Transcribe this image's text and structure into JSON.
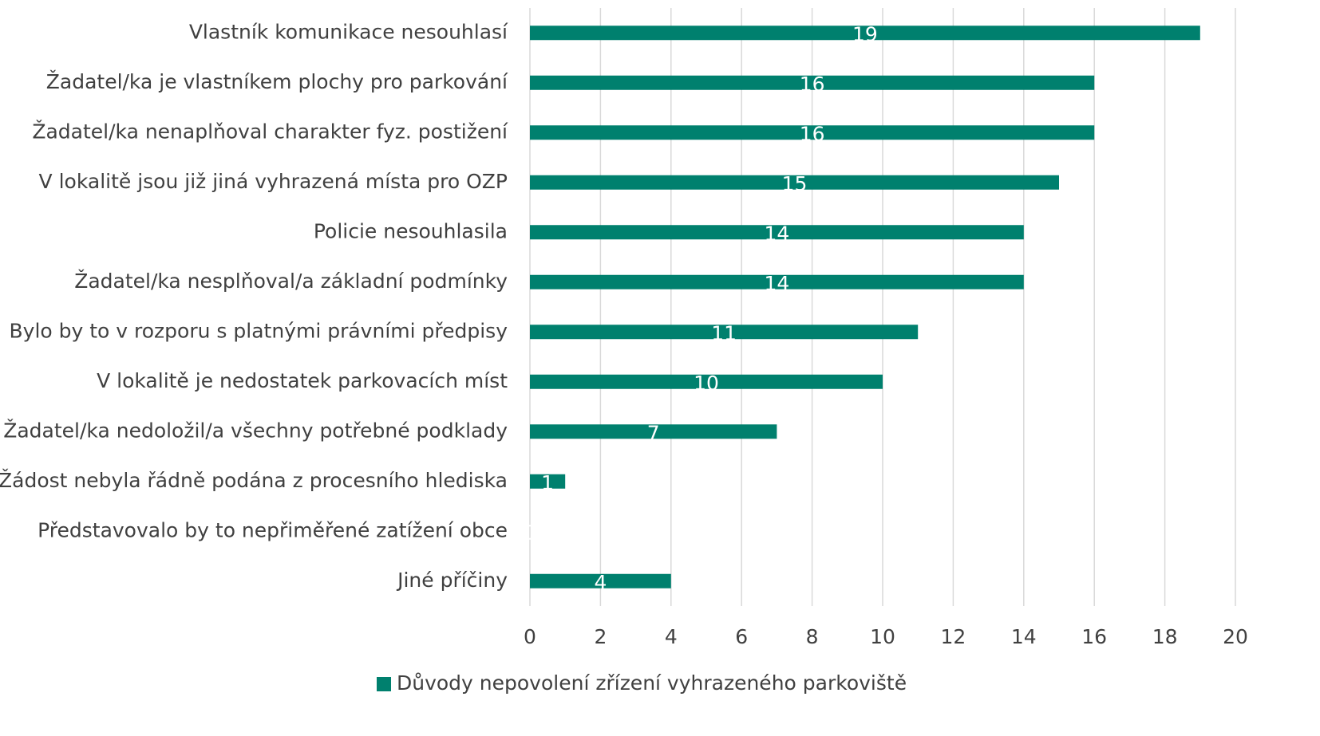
{
  "chart_data": {
    "type": "bar",
    "orientation": "horizontal",
    "categories": [
      "Vlastník komunikace nesouhlasí",
      "Žadatel/ka je vlastníkem plochy pro parkování",
      "Žadatel/ka nenaplňoval charakter fyz. postižení",
      "V lokalitě jsou již jiná vyhrazená místa pro OZP",
      "Policie nesouhlasila",
      "Žadatel/ka nesplňoval/a základní podmínky",
      "Bylo by to v rozporu s platnými právními předpisy",
      "V lokalitě je nedostatek parkovacích míst",
      "Žadatel/ka nedoložil/a všechny potřebné podklady",
      "Žádost nebyla řádně podána z procesního hlediska",
      "Představovalo by to nepřiměřené zatížení obce",
      "Jiné příčiny"
    ],
    "series": [
      {
        "name": "Důvody nepovolení zřízení vyhrazeného parkoviště",
        "color": "#00806e",
        "values": [
          19,
          16,
          16,
          15,
          14,
          14,
          11,
          10,
          7,
          1,
          0,
          4
        ]
      }
    ],
    "xlim": [
      0,
      20
    ],
    "xticks": [
      0,
      2,
      4,
      6,
      8,
      10,
      12,
      14,
      16,
      18,
      20
    ],
    "grid": true,
    "legend": "bottom"
  }
}
